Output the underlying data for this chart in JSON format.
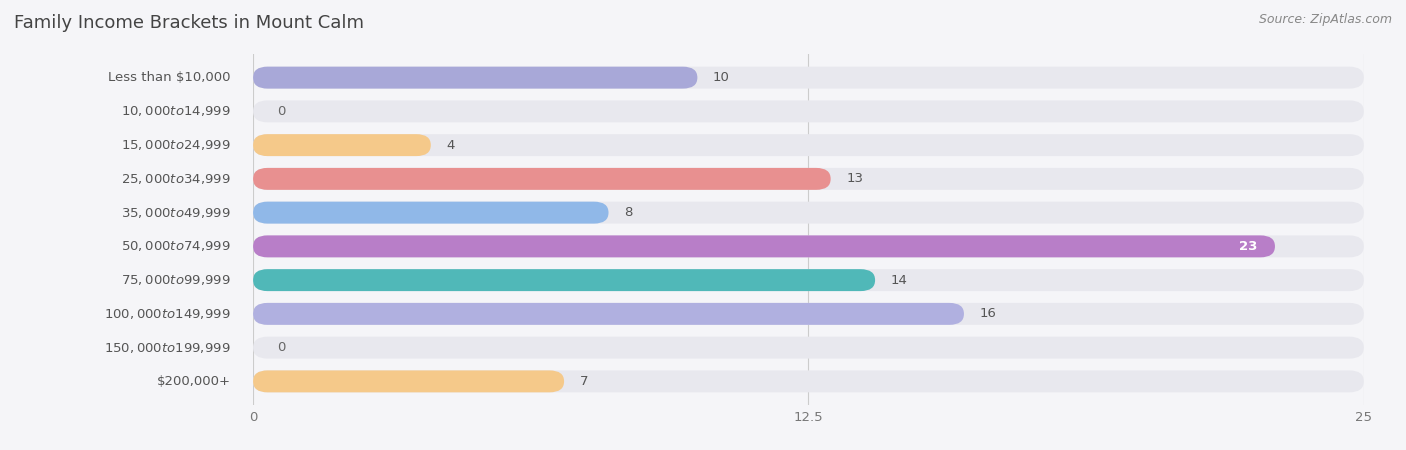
{
  "title": "Family Income Brackets in Mount Calm",
  "source": "Source: ZipAtlas.com",
  "categories": [
    "Less than $10,000",
    "$10,000 to $14,999",
    "$15,000 to $24,999",
    "$25,000 to $34,999",
    "$35,000 to $49,999",
    "$50,000 to $74,999",
    "$75,000 to $99,999",
    "$100,000 to $149,999",
    "$150,000 to $199,999",
    "$200,000+"
  ],
  "values": [
    10,
    0,
    4,
    13,
    8,
    23,
    14,
    16,
    0,
    7
  ],
  "colors": [
    "#a8a8d8",
    "#f09aaa",
    "#f5c98a",
    "#e89090",
    "#90b8e8",
    "#b87ec8",
    "#50b8b8",
    "#b0b0e0",
    "#f09aaa",
    "#f5c98a"
  ],
  "xlim": [
    0,
    25
  ],
  "xticks": [
    0,
    12.5,
    25
  ],
  "background_color": "#f5f5f8",
  "bar_bg_color": "#e8e8ee",
  "title_fontsize": 13,
  "label_fontsize": 9.5,
  "value_fontsize": 9.5,
  "source_fontsize": 9
}
